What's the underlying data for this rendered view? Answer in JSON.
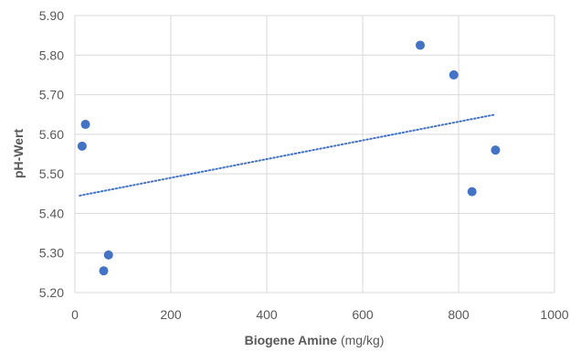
{
  "chart_data": {
    "type": "scatter",
    "title": "",
    "xlabel": "Biogene Amine",
    "xlabel_unit": "(mg/kg)",
    "ylabel": "pH-Wert",
    "xlim": [
      0,
      1000
    ],
    "ylim": [
      5.2,
      5.9
    ],
    "x_ticks": [
      0,
      200,
      400,
      600,
      800,
      1000
    ],
    "x_tick_labels": [
      "0",
      "200",
      "400",
      "600",
      "800",
      "1000"
    ],
    "y_ticks": [
      5.2,
      5.3,
      5.4,
      5.5,
      5.6,
      5.7,
      5.8,
      5.9
    ],
    "y_tick_labels": [
      "5.20",
      "5.30",
      "5.40",
      "5.50",
      "5.60",
      "5.70",
      "5.80",
      "5.90"
    ],
    "grid": true,
    "legend": "none",
    "series": [
      {
        "color": "#4472c4",
        "points": [
          {
            "x": 15,
            "y": 5.57
          },
          {
            "x": 22,
            "y": 5.625
          },
          {
            "x": 60,
            "y": 5.255
          },
          {
            "x": 70,
            "y": 5.295
          },
          {
            "x": 720,
            "y": 5.825
          },
          {
            "x": 790,
            "y": 5.75
          },
          {
            "x": 828,
            "y": 5.455
          },
          {
            "x": 877,
            "y": 5.56
          }
        ]
      }
    ],
    "trendline": {
      "type": "linear",
      "style": "dotted",
      "color": "#4472c4",
      "x_range": [
        10,
        877
      ],
      "y_range": [
        5.445,
        5.65
      ]
    }
  }
}
